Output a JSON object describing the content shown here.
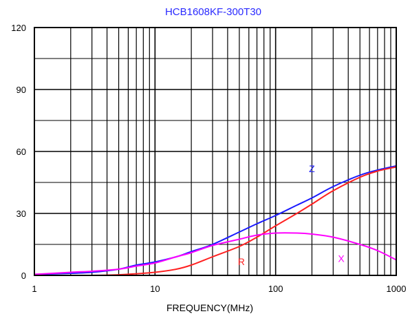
{
  "chart_data": {
    "type": "line",
    "title": "HCB1608KF-300T30",
    "xlabel": "FREQUENCY(MHz)",
    "ylabel": "",
    "x_scale": "log",
    "xlim": [
      1,
      1000
    ],
    "ylim": [
      0,
      120
    ],
    "x_ticks": [
      "1",
      "10",
      "100",
      "1000"
    ],
    "y_ticks": [
      "0",
      "30",
      "60",
      "90",
      "120"
    ],
    "grid": true,
    "colors": {
      "title": "#2a2aff",
      "Z": "#1a1aff",
      "R": "#ff2020",
      "X": "#ff00ff",
      "grid": "#000000"
    },
    "series": [
      {
        "name": "Z",
        "color": "#1a1aff",
        "points": [
          [
            1,
            0.5
          ],
          [
            2,
            1
          ],
          [
            3,
            1.5
          ],
          [
            5,
            3
          ],
          [
            7,
            5
          ],
          [
            10,
            6.5
          ],
          [
            15,
            9
          ],
          [
            20,
            11.5
          ],
          [
            30,
            15
          ],
          [
            50,
            21
          ],
          [
            70,
            25
          ],
          [
            100,
            29
          ],
          [
            150,
            34
          ],
          [
            200,
            37.5
          ],
          [
            300,
            43
          ],
          [
            500,
            48.5
          ],
          [
            700,
            51
          ],
          [
            1000,
            53
          ]
        ]
      },
      {
        "name": "R",
        "color": "#ff2020",
        "points": [
          [
            1,
            0
          ],
          [
            3,
            0
          ],
          [
            5,
            0.3
          ],
          [
            7,
            0.8
          ],
          [
            10,
            1.5
          ],
          [
            15,
            3
          ],
          [
            20,
            5
          ],
          [
            30,
            9
          ],
          [
            50,
            14
          ],
          [
            70,
            18.5
          ],
          [
            100,
            24
          ],
          [
            150,
            30
          ],
          [
            200,
            34.5
          ],
          [
            300,
            41
          ],
          [
            500,
            47.5
          ],
          [
            700,
            50.5
          ],
          [
            1000,
            52.5
          ]
        ]
      },
      {
        "name": "X",
        "color": "#ff00ff",
        "points": [
          [
            1,
            0.5
          ],
          [
            2,
            1.5
          ],
          [
            3,
            2
          ],
          [
            5,
            3
          ],
          [
            7,
            4.5
          ],
          [
            10,
            6
          ],
          [
            15,
            9
          ],
          [
            20,
            11
          ],
          [
            30,
            14.5
          ],
          [
            50,
            17.5
          ],
          [
            70,
            19.5
          ],
          [
            100,
            20.5
          ],
          [
            150,
            20.5
          ],
          [
            200,
            20
          ],
          [
            300,
            18.5
          ],
          [
            500,
            15
          ],
          [
            700,
            12
          ],
          [
            1000,
            7.5
          ]
        ]
      }
    ],
    "annotations": [
      {
        "text": "Z",
        "series": "Z",
        "x": 200,
        "y": 50
      },
      {
        "text": "R",
        "series": "R",
        "x": 52,
        "y": 5
      },
      {
        "text": "X",
        "series": "X",
        "x": 350,
        "y": 6.5
      }
    ]
  }
}
